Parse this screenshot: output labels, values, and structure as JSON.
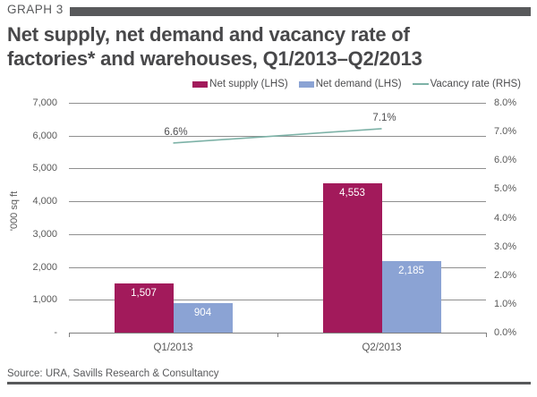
{
  "header": {
    "kicker": "GRAPH 3",
    "title_lines": [
      "Net supply, net demand and vacancy rate of",
      "factories* and warehouses, Q1/2013–Q2/2013"
    ]
  },
  "footer": {
    "source": "Source: URA, Savills Research & Consultancy"
  },
  "colors": {
    "net_supply": "#A21A5B",
    "net_demand": "#8BA3D4",
    "vacancy_line": "#7DB2A7",
    "header_bar": "#58595B",
    "gridline": "#8F8F8F"
  },
  "chart_data": {
    "type": "bar",
    "subtype": "grouped bars with secondary-axis line",
    "categories": [
      "Q1/2013",
      "Q2/2013"
    ],
    "series": [
      {
        "name": "Net supply (LHS)",
        "type": "bar",
        "axis": "left",
        "color": "#A21A5B",
        "values": [
          1507,
          4553
        ],
        "labels": [
          "1,507",
          "4,553"
        ]
      },
      {
        "name": "Net demand (LHS)",
        "type": "bar",
        "axis": "left",
        "color": "#8BA3D4",
        "values": [
          904,
          2185
        ],
        "labels": [
          "904",
          "2,185"
        ]
      },
      {
        "name": "Vacancy rate (RHS)",
        "type": "line",
        "axis": "right",
        "color": "#7DB2A7",
        "values": [
          6.6,
          7.1
        ],
        "labels": [
          "6.6%",
          "7.1%"
        ]
      }
    ],
    "left_axis": {
      "label": "'000 sq ft",
      "min": 0,
      "max": 7000,
      "step": 1000,
      "tick_labels": [
        "7,000",
        "6,000",
        "5,000",
        "4,000",
        "3,000",
        "2,000",
        "1,000",
        "-"
      ]
    },
    "right_axis": {
      "min": 0,
      "max": 8,
      "step": 1,
      "tick_labels": [
        "8.0%",
        "7.0%",
        "6.0%",
        "5.0%",
        "4.0%",
        "3.0%",
        "2.0%",
        "1.0%",
        "0.0%"
      ]
    },
    "grid": "horizontal",
    "legend_position": "top-right"
  }
}
